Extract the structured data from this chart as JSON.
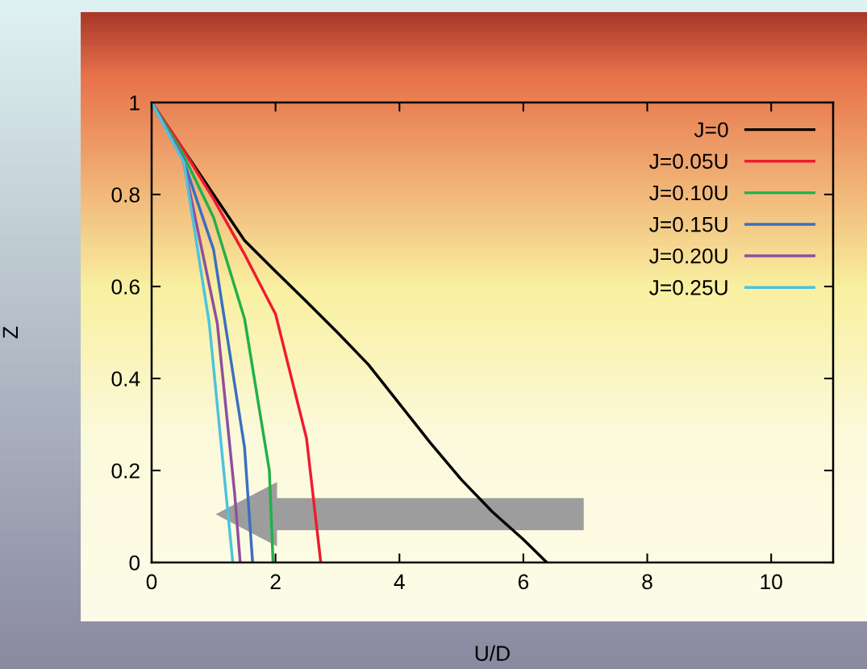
{
  "chart_data": {
    "type": "line",
    "xlabel": "U/D",
    "ylabel": "Z",
    "xlim": [
      0,
      11
    ],
    "xticks": [
      0,
      2,
      4,
      6,
      8,
      10
    ],
    "ylim": [
      0,
      1
    ],
    "yticks": [
      0,
      0.2,
      0.4,
      0.6,
      0.8,
      1
    ],
    "grid": false,
    "legend": "top right",
    "line_style": "solid",
    "marker": "none",
    "series": [
      {
        "name": "J=0",
        "color": "#000000",
        "x": [
          0,
          0.5,
          1,
          1.5,
          2,
          2.5,
          3,
          3.5,
          4,
          4.5,
          5,
          5.5,
          6,
          6.38
        ],
        "values": [
          1,
          0.9,
          0.8,
          0.7,
          0.633,
          0.567,
          0.5,
          0.43,
          0.345,
          0.26,
          0.18,
          0.11,
          0.05,
          0
        ]
      },
      {
        "name": "J=0.05U",
        "color": "#ee1c2e",
        "x": [
          0,
          0.5,
          1,
          1.5,
          2,
          2.5,
          2.73
        ],
        "values": [
          1,
          0.9,
          0.79,
          0.67,
          0.54,
          0.27,
          0
        ]
      },
      {
        "name": "J=0.10U",
        "color": "#22b04a",
        "x": [
          0,
          0.5,
          1,
          1.5,
          1.9,
          1.96
        ],
        "values": [
          1,
          0.89,
          0.75,
          0.53,
          0.2,
          0
        ]
      },
      {
        "name": "J=0.15U",
        "color": "#3b6fc0",
        "x": [
          0,
          0.5,
          1,
          1.5,
          1.63
        ],
        "values": [
          1,
          0.88,
          0.68,
          0.25,
          0
        ]
      },
      {
        "name": "J=0.20U",
        "color": "#8e4fa0",
        "x": [
          0,
          0.5,
          1.06,
          1.34,
          1.43
        ],
        "values": [
          1,
          0.88,
          0.52,
          0.15,
          0
        ]
      },
      {
        "name": "J=0.25U",
        "color": "#4cc3dc",
        "x": [
          0,
          0.52,
          0.93,
          1.31
        ],
        "values": [
          1,
          0.87,
          0.52,
          0
        ]
      }
    ]
  }
}
